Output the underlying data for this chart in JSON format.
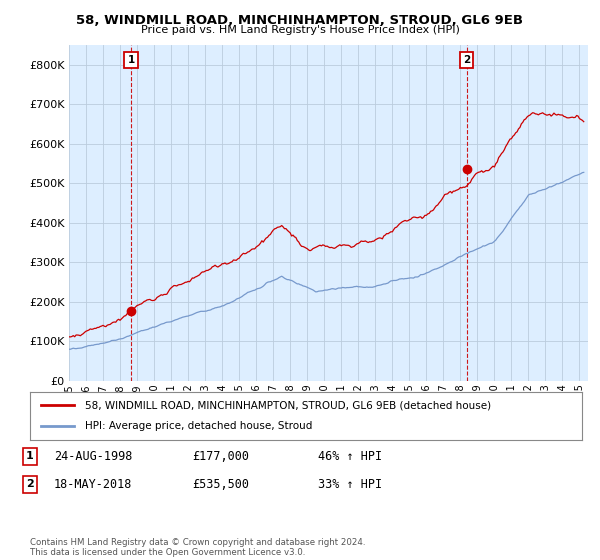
{
  "title1": "58, WINDMILL ROAD, MINCHINHAMPTON, STROUD, GL6 9EB",
  "title2": "Price paid vs. HM Land Registry's House Price Index (HPI)",
  "xlim_start": 1995.0,
  "xlim_end": 2025.5,
  "ylim": [
    0,
    850000
  ],
  "yticks": [
    0,
    100000,
    200000,
    300000,
    400000,
    500000,
    600000,
    700000,
    800000
  ],
  "ytick_labels": [
    "£0",
    "£100K",
    "£200K",
    "£300K",
    "£400K",
    "£500K",
    "£600K",
    "£700K",
    "£800K"
  ],
  "purchase1_x": 1998.645,
  "purchase1_y": 177000,
  "purchase1_label": "1",
  "purchase2_x": 2018.38,
  "purchase2_y": 535500,
  "purchase2_label": "2",
  "legend_line1": "58, WINDMILL ROAD, MINCHINHAMPTON, STROUD, GL6 9EB (detached house)",
  "legend_line2": "HPI: Average price, detached house, Stroud",
  "table_row1": [
    "1",
    "24-AUG-1998",
    "£177,000",
    "46% ↑ HPI"
  ],
  "table_row2": [
    "2",
    "18-MAY-2018",
    "£535,500",
    "33% ↑ HPI"
  ],
  "footer": "Contains HM Land Registry data © Crown copyright and database right 2024.\nThis data is licensed under the Open Government Licence v3.0.",
  "line_color_red": "#cc0000",
  "line_color_blue": "#7799cc",
  "bg_color": "#ffffff",
  "plot_bg_color": "#ddeeff",
  "grid_color": "#bbccdd",
  "purchase_marker_color": "#cc0000",
  "label_box_color": "#cc0000"
}
